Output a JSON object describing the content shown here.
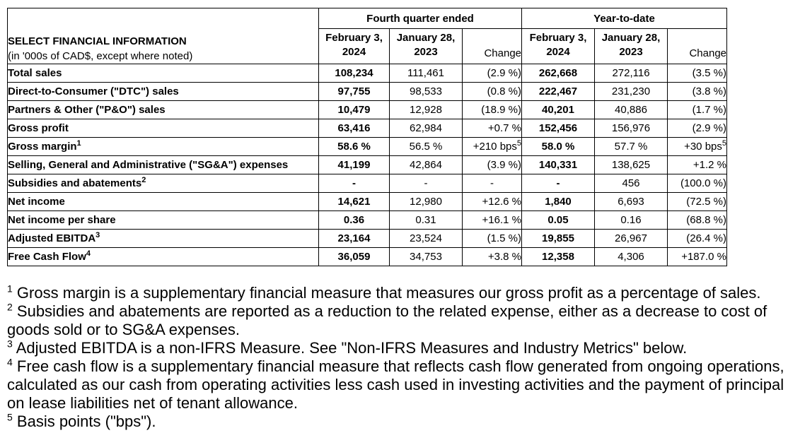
{
  "colors": {
    "background": "#ffffff",
    "text": "#000000",
    "border": "#000000"
  },
  "table": {
    "title": "SELECT FINANCIAL INFORMATION",
    "subtitle": "(in '000s of CAD$, except where noted)",
    "col_groups": [
      {
        "label": "Fourth quarter ended"
      },
      {
        "label": "Year-to-date"
      }
    ],
    "columns": [
      {
        "line1": "February 3,",
        "line2": "2024"
      },
      {
        "line1": "January 28,",
        "line2": "2023"
      },
      {
        "label": "Change"
      },
      {
        "line1": "February 3,",
        "line2": "2024"
      },
      {
        "line1": "January 28,",
        "line2": "2023"
      },
      {
        "label": "Change"
      }
    ],
    "rows": [
      {
        "label": {
          "t": "Total sales",
          "sup": ""
        },
        "values": [
          "108,234",
          "111,461",
          "(2.9 %)",
          "262,668",
          "272,116",
          "(3.5 %)"
        ]
      },
      {
        "label": {
          "t": "Direct-to-Consumer (\"DTC\") sales",
          "sup": ""
        },
        "values": [
          "97,755",
          "98,533",
          "(0.8 %)",
          "222,467",
          "231,230",
          "(3.8 %)"
        ]
      },
      {
        "label": {
          "t": "Partners & Other (\"P&O\") sales",
          "sup": ""
        },
        "values": [
          "10,479",
          "12,928",
          "(18.9 %)",
          "40,201",
          "40,886",
          "(1.7 %)"
        ]
      },
      {
        "label": {
          "t": "Gross profit",
          "sup": ""
        },
        "values": [
          "63,416",
          "62,984",
          "+0.7 %",
          "152,456",
          "156,976",
          "(2.9 %)"
        ]
      },
      {
        "label": {
          "t": "Gross margin",
          "sup": "1"
        },
        "values": [
          "58.6 %",
          "56.5 %",
          {
            "t": "+210 bps",
            "sup": "5"
          },
          "58.0 %",
          "57.7 %",
          {
            "t": "+30 bps",
            "sup": "5"
          }
        ]
      },
      {
        "label": {
          "t": "Selling, General and Administrative (\"SG&A\") expenses",
          "sup": ""
        },
        "values": [
          "41,199",
          "42,864",
          "(3.9 %)",
          "140,331",
          "138,625",
          "+1.2 %"
        ]
      },
      {
        "label": {
          "t": "Subsidies and abatements",
          "sup": "2"
        },
        "values": [
          "-",
          "-",
          "-",
          "-",
          "456",
          "(100.0 %)"
        ]
      },
      {
        "label": {
          "t": "Net income",
          "sup": ""
        },
        "values": [
          "14,621",
          "12,980",
          "+12.6 %",
          "1,840",
          "6,693",
          "(72.5 %)"
        ]
      },
      {
        "label": {
          "t": "Net income per share",
          "sup": ""
        },
        "values": [
          "0.36",
          "0.31",
          "+16.1 %",
          "0.05",
          "0.16",
          "(68.8 %)"
        ]
      },
      {
        "label": {
          "t": "Adjusted EBITDA",
          "sup": "3"
        },
        "values": [
          "23,164",
          "23,524",
          "(1.5 %)",
          "19,855",
          "26,967",
          "(26.4 %)"
        ]
      },
      {
        "label": {
          "t": "Free Cash Flow",
          "sup": "4"
        },
        "values": [
          "36,059",
          "34,753",
          "+3.8 %",
          "12,358",
          "4,306",
          "+187.0 %"
        ]
      }
    ]
  },
  "footnotes": [
    {
      "sup": "1",
      "text": "Gross margin is a supplementary financial measure that measures our gross profit as a percentage of sales."
    },
    {
      "sup": "2",
      "text": "Subsidies and abatements are reported as a reduction to the related expense, either as a decrease to cost of goods sold or to SG&A expenses."
    },
    {
      "sup": "3",
      "text": "Adjusted EBITDA is a non-IFRS Measure. See \"Non-IFRS Measures and Industry Metrics\" below."
    },
    {
      "sup": "4",
      "text": "Free cash flow is a supplementary financial measure that reflects cash flow generated from ongoing operations, calculated as our cash from operating activities less cash used in investing activities and the payment of principal on lease liabilities net of tenant allowance."
    },
    {
      "sup": "5",
      "text": "Basis points (\"bps\")."
    }
  ]
}
